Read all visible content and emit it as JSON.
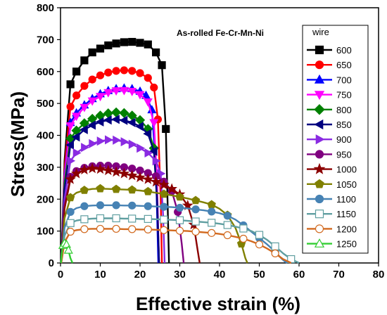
{
  "chart_data": {
    "type": "line",
    "title": "",
    "xlabel": "Effective strain (%)",
    "ylabel": "Stress(MPa)",
    "xlim": [
      0,
      80
    ],
    "ylim": [
      0,
      800
    ],
    "xticks": [
      0,
      10,
      20,
      30,
      40,
      50,
      60,
      70,
      80
    ],
    "yticks": [
      0,
      100,
      200,
      300,
      400,
      500,
      600,
      700,
      800
    ],
    "annotation": "As-rolled Fe-Cr-Mn-Ni",
    "legend_title": "wire",
    "legend_position": "right",
    "series": [
      {
        "name": "600",
        "color": "#000000",
        "marker": "square",
        "fill": true,
        "x": [
          0.2,
          1,
          2.5,
          4,
          6,
          8,
          10,
          12,
          14,
          16,
          18,
          20,
          22,
          24,
          25.5,
          26.5,
          27,
          27.3
        ],
        "y": [
          0,
          320,
          560,
          600,
          635,
          660,
          672,
          682,
          688,
          692,
          693,
          690,
          685,
          660,
          620,
          420,
          150,
          0
        ]
      },
      {
        "name": "650",
        "color": "#ff0000",
        "marker": "circle",
        "fill": true,
        "x": [
          0.2,
          1,
          2.5,
          4,
          6,
          8,
          10,
          12,
          14,
          16,
          18,
          20,
          22,
          23.5,
          24.5,
          25.2,
          25.5
        ],
        "y": [
          0,
          300,
          490,
          525,
          555,
          575,
          588,
          597,
          602,
          604,
          602,
          595,
          580,
          550,
          450,
          200,
          0
        ]
      },
      {
        "name": "700",
        "color": "#0000ff",
        "marker": "triangle-up",
        "fill": true,
        "x": [
          0.2,
          1,
          2.5,
          4,
          6,
          8,
          10,
          12,
          14,
          16,
          18,
          20,
          21.5,
          23,
          24,
          24.6
        ],
        "y": [
          0,
          280,
          440,
          470,
          495,
          515,
          530,
          540,
          546,
          548,
          546,
          538,
          525,
          480,
          300,
          0
        ]
      },
      {
        "name": "750",
        "color": "#ff00ff",
        "marker": "triangle-down",
        "fill": true,
        "x": [
          0.2,
          1,
          2.5,
          4,
          6,
          8,
          10,
          12,
          14,
          16,
          18,
          20,
          22,
          23.5,
          24.3,
          24.8
        ],
        "y": [
          0,
          270,
          430,
          460,
          488,
          508,
          522,
          534,
          540,
          541,
          538,
          528,
          505,
          440,
          250,
          0
        ]
      },
      {
        "name": "800",
        "color": "#008000",
        "marker": "diamond",
        "fill": true,
        "x": [
          0.2,
          1,
          2.5,
          4,
          6,
          8,
          10,
          12,
          14,
          16,
          18,
          20,
          22,
          23.5,
          24.3,
          24.8
        ],
        "y": [
          0,
          250,
          390,
          415,
          438,
          452,
          462,
          469,
          472,
          470,
          462,
          448,
          420,
          360,
          200,
          0
        ]
      },
      {
        "name": "850",
        "color": "#000080",
        "marker": "triangle-left",
        "fill": true,
        "x": [
          0.2,
          1,
          2.5,
          4,
          6,
          8,
          10,
          12,
          14,
          16,
          18,
          20,
          22,
          23.5,
          24.3,
          24.8
        ],
        "y": [
          0,
          230,
          370,
          395,
          418,
          432,
          442,
          448,
          450,
          447,
          440,
          428,
          405,
          350,
          190,
          0
        ]
      },
      {
        "name": "900",
        "color": "#8a2be2",
        "marker": "triangle-right",
        "fill": true,
        "x": [
          0.2,
          1,
          2.5,
          4,
          6,
          8,
          10,
          12,
          14,
          16,
          18,
          20,
          22,
          24,
          25.2,
          25.8,
          26.2
        ],
        "y": [
          0,
          200,
          320,
          345,
          362,
          374,
          382,
          386,
          385,
          380,
          372,
          360,
          345,
          320,
          280,
          150,
          0
        ]
      },
      {
        "name": "950",
        "color": "#800080",
        "marker": "circle",
        "fill": true,
        "x": [
          0.2,
          1,
          2.5,
          4,
          6,
          8,
          10,
          12,
          14,
          16,
          18,
          20,
          22,
          24,
          26,
          28,
          29.5,
          30.5,
          31
        ],
        "y": [
          0,
          180,
          270,
          288,
          298,
          303,
          305,
          305,
          303,
          300,
          296,
          290,
          282,
          272,
          255,
          225,
          160,
          60,
          0
        ]
      },
      {
        "name": "1000",
        "color": "#8b0000",
        "marker": "star",
        "fill": true,
        "x": [
          0.2,
          1,
          2.5,
          4,
          6,
          8,
          10,
          12,
          14,
          16,
          18,
          20,
          22,
          24,
          26,
          28,
          30,
          32,
          33.5,
          34.5,
          35
        ],
        "y": [
          0,
          170,
          262,
          280,
          292,
          296,
          294,
          290,
          285,
          280,
          274,
          268,
          262,
          254,
          245,
          232,
          215,
          180,
          120,
          40,
          0
        ]
      },
      {
        "name": "1050",
        "color": "#808000",
        "marker": "pentagon",
        "fill": true,
        "x": [
          0.2,
          1,
          2.5,
          4,
          6,
          8,
          10,
          12,
          14,
          16,
          18,
          20,
          22,
          24,
          26,
          28,
          30,
          32,
          34,
          36,
          38,
          40,
          42,
          44,
          45.5,
          46.5,
          47
        ],
        "y": [
          0,
          140,
          205,
          220,
          228,
          232,
          233,
          232,
          231,
          230,
          229,
          227,
          224,
          220,
          216,
          212,
          207,
          202,
          196,
          190,
          183,
          170,
          150,
          110,
          60,
          15,
          0
        ]
      },
      {
        "name": "1100",
        "color": "#4682b4",
        "marker": "circle",
        "fill": true,
        "x": [
          0.2,
          1,
          2.5,
          4,
          6,
          8,
          10,
          12,
          14,
          16,
          18,
          20,
          22,
          24,
          26,
          28,
          30,
          32,
          34,
          36,
          38,
          40,
          42,
          44,
          46,
          48,
          50,
          52,
          54,
          55.5,
          56.5,
          57
        ],
        "y": [
          0,
          110,
          160,
          172,
          178,
          180,
          181,
          181,
          181,
          180,
          180,
          179,
          178,
          177,
          176,
          175,
          173,
          171,
          168,
          165,
          161,
          156,
          148,
          136,
          118,
          98,
          78,
          58,
          35,
          15,
          4,
          0
        ]
      },
      {
        "name": "1150",
        "color": "#5f9ea0",
        "marker": "square",
        "fill": false,
        "x": [
          0.2,
          1,
          2.5,
          4,
          6,
          8,
          10,
          12,
          14,
          16,
          18,
          20,
          22,
          24,
          26,
          28,
          30,
          32,
          34,
          36,
          38,
          40,
          42,
          44,
          46,
          48,
          50,
          52,
          54,
          56,
          58,
          59.5,
          60
        ],
        "y": [
          0,
          85,
          125,
          133,
          137,
          139,
          140,
          140,
          140,
          139,
          139,
          138,
          138,
          137,
          136,
          135,
          134,
          132,
          130,
          128,
          126,
          123,
          119,
          114,
          108,
          100,
          88,
          72,
          52,
          30,
          12,
          3,
          0
        ]
      },
      {
        "name": "1200",
        "color": "#d2691e",
        "marker": "circle",
        "fill": false,
        "x": [
          0.2,
          1,
          2.5,
          4,
          6,
          8,
          10,
          12,
          14,
          16,
          18,
          20,
          22,
          24,
          26,
          28,
          30,
          32,
          34,
          36,
          38,
          40,
          42,
          44,
          46,
          48,
          50,
          52,
          54,
          56,
          57.5,
          58
        ],
        "y": [
          0,
          65,
          98,
          103,
          106,
          107,
          107,
          107,
          107,
          106,
          106,
          105,
          105,
          104,
          103,
          102,
          101,
          100,
          98,
          96,
          94,
          91,
          87,
          82,
          76,
          68,
          58,
          45,
          30,
          12,
          3,
          0
        ]
      },
      {
        "name": "1250",
        "color": "#32cd32",
        "marker": "triangle-up",
        "fill": false,
        "x": [
          0.1,
          0.3,
          0.6,
          1,
          1.5,
          2,
          2.5,
          3
        ],
        "y": [
          0,
          30,
          55,
          62,
          58,
          40,
          15,
          0
        ]
      }
    ]
  }
}
